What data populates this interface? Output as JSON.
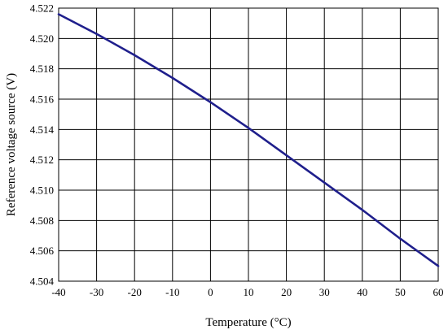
{
  "chart_data": {
    "type": "line",
    "title": "",
    "xlabel": "Temperature (°C)",
    "ylabel": "Reference voltage source (V)",
    "xlim": [
      -40,
      60
    ],
    "ylim": [
      4.504,
      4.522
    ],
    "grid": true,
    "x_ticks": [
      "-40",
      "-30",
      "-20",
      "-10",
      "0",
      "10",
      "20",
      "30",
      "40",
      "50",
      "60"
    ],
    "y_ticks": [
      "4.504",
      "4.506",
      "4.508",
      "4.510",
      "4.512",
      "4.514",
      "4.516",
      "4.518",
      "4.520",
      "4.522"
    ],
    "series": [
      {
        "color": "#1f1f8c",
        "x": [
          -40,
          -30,
          -20,
          -10,
          0,
          10,
          20,
          30,
          40,
          50,
          60
        ],
        "y": [
          4.5216,
          4.5203,
          4.5189,
          4.5174,
          4.5158,
          4.5141,
          4.5123,
          4.5105,
          4.5087,
          4.5068,
          4.505
        ]
      }
    ]
  }
}
